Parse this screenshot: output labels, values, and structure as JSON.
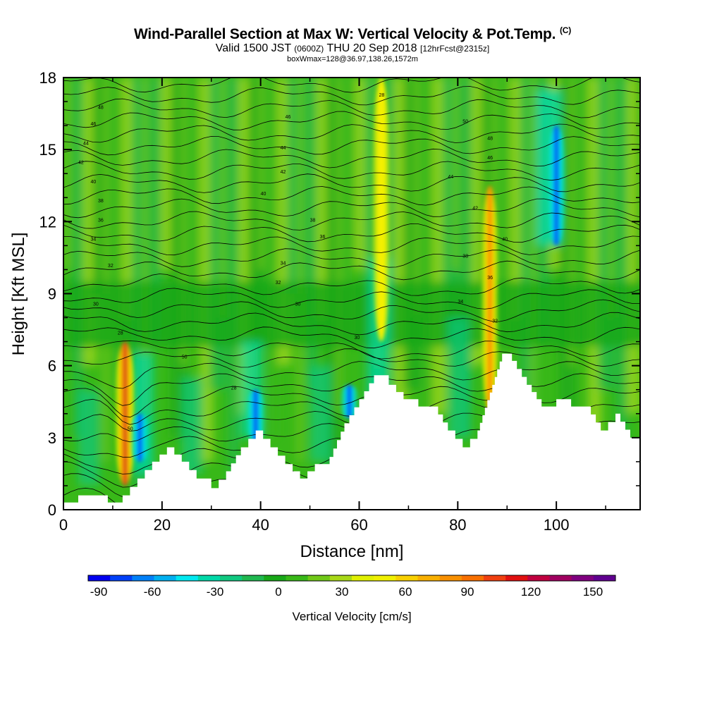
{
  "header": {
    "title": "Wind-Parallel Section at Max W: Vertical Velocity & Pot.Temp.",
    "copyright": "(C)",
    "subtitle_a": "Valid 1500 JST",
    "subtitle_b": "(0600Z)",
    "subtitle_c": "THU 20 Sep 2018",
    "subtitle_d": "[12hrFcst@2315z]",
    "subtitle2": "boxWmax=128@36.97,138.26,1572m"
  },
  "chart_data": {
    "type": "heatmap",
    "xlabel": "Distance [nm]",
    "ylabel": "Height [Kft MSL]",
    "xlim": [
      0,
      117
    ],
    "ylim": [
      0,
      18
    ],
    "xticks": [
      0,
      20,
      40,
      60,
      80,
      100
    ],
    "yticks": [
      0,
      3,
      6,
      9,
      12,
      15,
      18
    ],
    "terrain_x": [
      0,
      3,
      9,
      12,
      15,
      18,
      21,
      24,
      27,
      30,
      33,
      36,
      39,
      42,
      45,
      48,
      51,
      54,
      57,
      60,
      63,
      66,
      69,
      72,
      75,
      78,
      81,
      84,
      87,
      89,
      91,
      94,
      97,
      100,
      103,
      106,
      109,
      112,
      115,
      117
    ],
    "terrain_y": [
      0.3,
      0.6,
      0.3,
      0.6,
      1.3,
      2.0,
      2.6,
      2.0,
      1.3,
      0.9,
      1.6,
      2.6,
      3.3,
      2.6,
      1.9,
      1.3,
      1.9,
      2.2,
      3.6,
      4.6,
      5.6,
      5.2,
      4.6,
      4.3,
      4.3,
      3.3,
      2.6,
      3.3,
      5.2,
      6.5,
      6.2,
      5.2,
      4.3,
      4.6,
      4.3,
      4.3,
      3.3,
      4.0,
      3.0,
      2.6
    ],
    "updraft_cores": [
      {
        "x": 12.5,
        "ytop": 7.0,
        "ybottom": 1.0,
        "w_max": 128
      },
      {
        "x": 86.5,
        "ytop": 13.5,
        "ybottom": 4.0,
        "w_max": 75
      },
      {
        "x": 64.5,
        "ytop": 18.0,
        "ybottom": 7.0,
        "w_max": 35
      }
    ],
    "downdraft_cores": [
      {
        "x": 39.0,
        "ytop": 5.0,
        "ybottom": 2.8,
        "w_min": -75
      },
      {
        "x": 58.0,
        "ytop": 5.2,
        "ybottom": 3.8,
        "w_min": -35
      },
      {
        "x": 15.5,
        "ytop": 4.0,
        "ybottom": 2.0,
        "w_min": -30
      },
      {
        "x": 100.0,
        "ytop": 16.0,
        "ybottom": 11.0,
        "w_min": -30
      }
    ],
    "contour_labels": [
      "48",
      "46",
      "44",
      "42",
      "40",
      "38",
      "36",
      "34",
      "32",
      "30",
      "28",
      "50"
    ],
    "colorbar": {
      "label": "Vertical Velocity [cm/s]",
      "ticks": [
        "-90",
        "-60",
        "-30",
        "0",
        "30",
        "60",
        "90",
        "120",
        "150"
      ],
      "colors": [
        "#0000f0",
        "#0040f8",
        "#0080f8",
        "#00b0f0",
        "#00e8f0",
        "#00d8a8",
        "#10c880",
        "#20b850",
        "#18a818",
        "#38b818",
        "#70c818",
        "#a8d818",
        "#e0f000",
        "#f0f000",
        "#f8d000",
        "#f8b000",
        "#f89000",
        "#f87000",
        "#f04010",
        "#e01010",
        "#c00040",
        "#a00060",
        "#800080",
        "#600090"
      ]
    }
  }
}
